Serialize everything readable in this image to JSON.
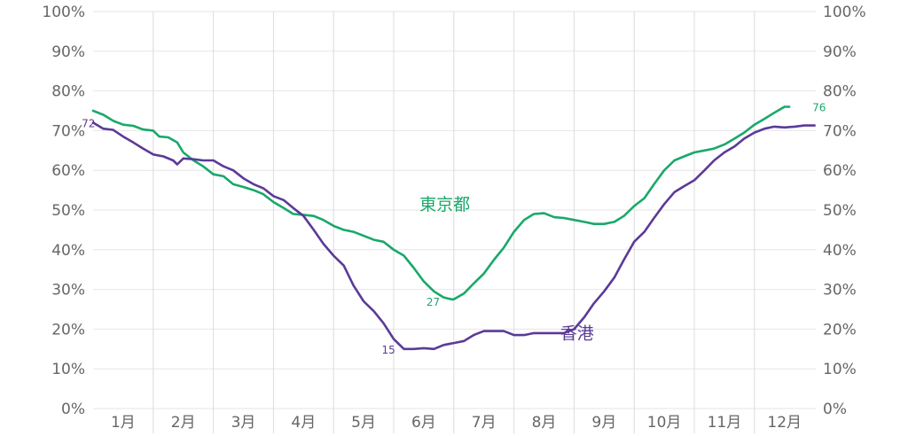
{
  "chart_data": {
    "type": "line",
    "ylim": [
      0,
      100
    ],
    "grid": true,
    "y_ticks_left": [
      "0%",
      "10%",
      "20%",
      "30%",
      "40%",
      "50%",
      "60%",
      "70%",
      "80%",
      "90%",
      "100%"
    ],
    "y_ticks_right": [
      "0%",
      "10%",
      "20%",
      "30%",
      "40%",
      "50%",
      "60%",
      "70%",
      "80%",
      "90%",
      "100%"
    ],
    "x_ticks": [
      "1月",
      "2月",
      "3月",
      "4月",
      "5月",
      "6月",
      "7月",
      "8月",
      "9月",
      "10月",
      "11月",
      "12月"
    ],
    "series": [
      {
        "name": "東京都",
        "color": "#1aa86a",
        "label_point": {
          "x": 5.85,
          "y": 50,
          "text": "東京都"
        },
        "annotations": [
          {
            "x": 5.5,
            "y": 27,
            "text": "27",
            "anchor": "start"
          },
          {
            "x": 11.92,
            "y": 76,
            "text": "76",
            "anchor": "start"
          }
        ],
        "points": [
          [
            0.0,
            75.0
          ],
          [
            0.17,
            74.0
          ],
          [
            0.33,
            72.5
          ],
          [
            0.5,
            71.5
          ],
          [
            0.67,
            71.2
          ],
          [
            0.83,
            70.3
          ],
          [
            1.0,
            70.0
          ],
          [
            1.1,
            68.5
          ],
          [
            1.25,
            68.3
          ],
          [
            1.4,
            67.0
          ],
          [
            1.5,
            64.5
          ],
          [
            1.67,
            62.5
          ],
          [
            1.83,
            61.0
          ],
          [
            2.0,
            59.0
          ],
          [
            2.17,
            58.5
          ],
          [
            2.33,
            56.5
          ],
          [
            2.5,
            55.8
          ],
          [
            2.67,
            55.0
          ],
          [
            2.83,
            54.0
          ],
          [
            3.0,
            52.0
          ],
          [
            3.17,
            50.5
          ],
          [
            3.33,
            49.0
          ],
          [
            3.5,
            48.8
          ],
          [
            3.67,
            48.5
          ],
          [
            3.83,
            47.5
          ],
          [
            4.0,
            46.0
          ],
          [
            4.17,
            45.0
          ],
          [
            4.33,
            44.5
          ],
          [
            4.5,
            43.5
          ],
          [
            4.67,
            42.5
          ],
          [
            4.83,
            42.0
          ],
          [
            5.0,
            40.0
          ],
          [
            5.17,
            38.5
          ],
          [
            5.33,
            35.5
          ],
          [
            5.5,
            32.0
          ],
          [
            5.67,
            29.5
          ],
          [
            5.83,
            28.0
          ],
          [
            5.96,
            27.5
          ],
          [
            6.0,
            27.5
          ],
          [
            6.17,
            29.0
          ],
          [
            6.33,
            31.5
          ],
          [
            6.5,
            34.0
          ],
          [
            6.67,
            37.5
          ],
          [
            6.83,
            40.5
          ],
          [
            7.0,
            44.5
          ],
          [
            7.17,
            47.5
          ],
          [
            7.33,
            49.0
          ],
          [
            7.5,
            49.2
          ],
          [
            7.67,
            48.2
          ],
          [
            7.83,
            48.0
          ],
          [
            8.0,
            47.5
          ],
          [
            8.17,
            47.0
          ],
          [
            8.33,
            46.5
          ],
          [
            8.5,
            46.5
          ],
          [
            8.67,
            47.0
          ],
          [
            8.83,
            48.5
          ],
          [
            9.0,
            51.0
          ],
          [
            9.17,
            53.0
          ],
          [
            9.33,
            56.5
          ],
          [
            9.5,
            60.0
          ],
          [
            9.67,
            62.5
          ],
          [
            9.83,
            63.5
          ],
          [
            10.0,
            64.5
          ],
          [
            10.17,
            65.0
          ],
          [
            10.33,
            65.5
          ],
          [
            10.5,
            66.5
          ],
          [
            10.67,
            68.0
          ],
          [
            10.83,
            69.5
          ],
          [
            11.0,
            71.5
          ],
          [
            11.17,
            73.0
          ],
          [
            11.33,
            74.5
          ],
          [
            11.5,
            76.0
          ],
          [
            11.58,
            76.0
          ]
        ]
      },
      {
        "name": "香港",
        "color": "#5b3a97",
        "label_point": {
          "x": 8.05,
          "y": 17.5,
          "text": "香港"
        },
        "annotations": [
          {
            "x": 0.08,
            "y": 72,
            "text": "72",
            "anchor": "end"
          },
          {
            "x": 5.07,
            "y": 15,
            "text": "15",
            "anchor": "end"
          }
        ],
        "points": [
          [
            0.0,
            72.0
          ],
          [
            0.17,
            70.5
          ],
          [
            0.33,
            70.2
          ],
          [
            0.5,
            68.5
          ],
          [
            0.67,
            67.0
          ],
          [
            0.83,
            65.5
          ],
          [
            1.0,
            64.0
          ],
          [
            1.17,
            63.5
          ],
          [
            1.33,
            62.5
          ],
          [
            1.4,
            61.5
          ],
          [
            1.5,
            63.0
          ],
          [
            1.67,
            62.8
          ],
          [
            1.83,
            62.5
          ],
          [
            2.0,
            62.5
          ],
          [
            2.17,
            61.0
          ],
          [
            2.33,
            60.0
          ],
          [
            2.5,
            58.0
          ],
          [
            2.67,
            56.5
          ],
          [
            2.83,
            55.5
          ],
          [
            3.0,
            53.5
          ],
          [
            3.17,
            52.5
          ],
          [
            3.33,
            50.5
          ],
          [
            3.5,
            48.5
          ],
          [
            3.67,
            45.0
          ],
          [
            3.83,
            41.5
          ],
          [
            4.0,
            38.5
          ],
          [
            4.17,
            36.0
          ],
          [
            4.33,
            31.0
          ],
          [
            4.5,
            27.0
          ],
          [
            4.67,
            24.5
          ],
          [
            4.83,
            21.5
          ],
          [
            5.0,
            17.5
          ],
          [
            5.17,
            15.0
          ],
          [
            5.33,
            15.0
          ],
          [
            5.5,
            15.2
          ],
          [
            5.67,
            15.0
          ],
          [
            5.83,
            16.0
          ],
          [
            6.0,
            16.5
          ],
          [
            6.17,
            17.0
          ],
          [
            6.33,
            18.5
          ],
          [
            6.5,
            19.5
          ],
          [
            6.67,
            19.5
          ],
          [
            6.83,
            19.5
          ],
          [
            7.0,
            18.5
          ],
          [
            7.17,
            18.5
          ],
          [
            7.33,
            19.0
          ],
          [
            7.5,
            19.0
          ],
          [
            7.67,
            19.0
          ],
          [
            7.83,
            19.0
          ],
          [
            8.0,
            20.0
          ],
          [
            8.17,
            23.0
          ],
          [
            8.33,
            26.5
          ],
          [
            8.5,
            29.5
          ],
          [
            8.67,
            33.0
          ],
          [
            8.83,
            37.5
          ],
          [
            9.0,
            42.0
          ],
          [
            9.17,
            44.5
          ],
          [
            9.33,
            48.0
          ],
          [
            9.5,
            51.5
          ],
          [
            9.67,
            54.5
          ],
          [
            9.83,
            56.0
          ],
          [
            10.0,
            57.5
          ],
          [
            10.17,
            60.0
          ],
          [
            10.33,
            62.5
          ],
          [
            10.5,
            64.5
          ],
          [
            10.67,
            66.0
          ],
          [
            10.83,
            68.0
          ],
          [
            11.0,
            69.5
          ],
          [
            11.17,
            70.5
          ],
          [
            11.33,
            71.0
          ],
          [
            11.5,
            70.8
          ],
          [
            11.67,
            71.0
          ],
          [
            11.83,
            71.3
          ],
          [
            12.0,
            71.3
          ]
        ]
      }
    ]
  }
}
